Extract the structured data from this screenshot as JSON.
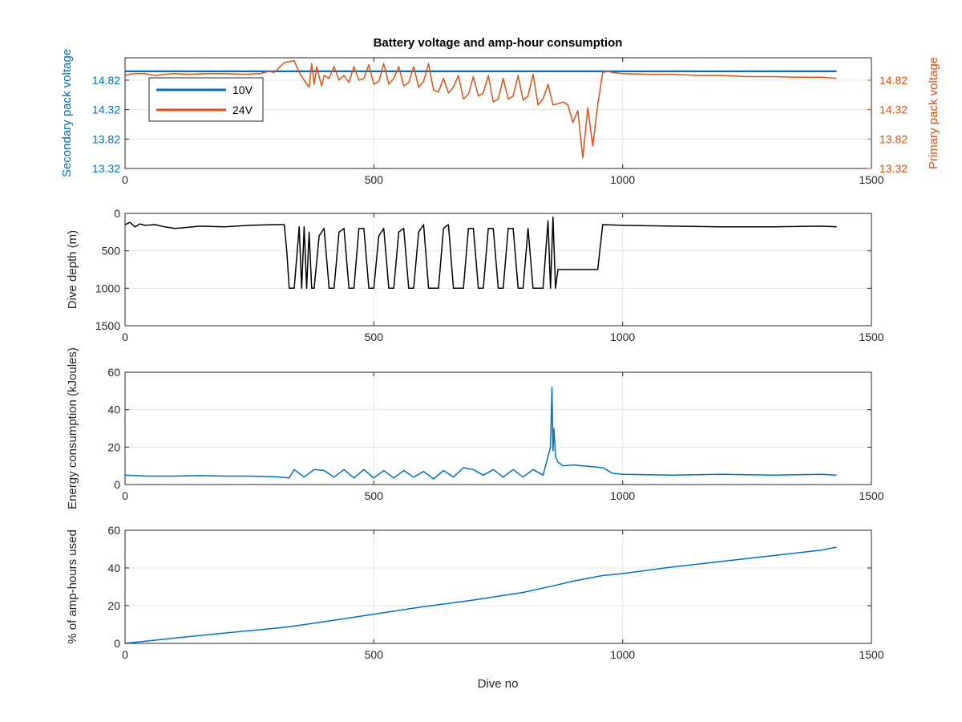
{
  "figure": {
    "title": "Battery voltage and amp-hour consumption",
    "xlabel": "Dive no"
  },
  "chart_data": [
    {
      "type": "line",
      "title": "Battery voltage and amp-hour consumption",
      "xlabel": "",
      "ylabel": "Secondary pack voltage",
      "ylabel_right": "Primary pack voltage",
      "xlim": [
        0,
        1500
      ],
      "ylim": [
        13.32,
        15.2
      ],
      "xticks": [
        "0",
        "500",
        "1000",
        "1500"
      ],
      "yticks": [
        "13.32",
        "13.82",
        "14.32",
        "14.82"
      ],
      "yticks_right": [
        "13.32",
        "13.82",
        "14.32",
        "14.82"
      ],
      "grid": true,
      "legend": "top-left",
      "series": [
        {
          "name": "10V",
          "color": "#0072BD",
          "x": [
            0,
            1430
          ],
          "y": [
            14.97,
            14.97
          ]
        },
        {
          "name": "24V",
          "color": "#D95319",
          "x": [
            0,
            10,
            20,
            40,
            60,
            80,
            100,
            130,
            160,
            200,
            240,
            270,
            290,
            300,
            320,
            340,
            350,
            360,
            370,
            375,
            380,
            385,
            395,
            400,
            410,
            420,
            430,
            440,
            450,
            460,
            470,
            480,
            490,
            500,
            510,
            520,
            530,
            540,
            550,
            560,
            570,
            580,
            590,
            600,
            610,
            620,
            630,
            640,
            650,
            660,
            670,
            680,
            690,
            700,
            710,
            720,
            730,
            740,
            750,
            760,
            770,
            780,
            790,
            800,
            810,
            820,
            830,
            840,
            850,
            860,
            870,
            880,
            890,
            900,
            910,
            920,
            930,
            940,
            950,
            960,
            970,
            980,
            1000,
            1050,
            1100,
            1150,
            1200,
            1250,
            1300,
            1350,
            1400,
            1430
          ],
          "y": [
            14.9,
            14.92,
            14.93,
            14.93,
            14.9,
            14.92,
            14.93,
            14.92,
            14.93,
            14.93,
            14.92,
            14.93,
            14.97,
            14.95,
            15.12,
            15.15,
            14.95,
            14.82,
            14.7,
            15.1,
            14.75,
            15.05,
            14.72,
            14.9,
            14.85,
            15.05,
            14.82,
            14.9,
            14.78,
            15.05,
            14.82,
            14.85,
            15.08,
            14.75,
            14.8,
            15.1,
            14.75,
            14.85,
            15.05,
            14.72,
            14.78,
            15.05,
            14.7,
            14.8,
            15.1,
            14.65,
            14.62,
            14.85,
            14.6,
            14.7,
            14.9,
            14.5,
            14.58,
            14.88,
            14.55,
            14.6,
            14.9,
            14.45,
            14.5,
            14.85,
            14.5,
            14.55,
            14.9,
            14.48,
            14.55,
            14.92,
            14.4,
            14.5,
            14.75,
            14.4,
            14.42,
            14.45,
            14.4,
            14.1,
            14.3,
            13.5,
            14.35,
            13.7,
            14.4,
            14.95,
            14.97,
            14.95,
            14.93,
            14.92,
            14.92,
            14.9,
            14.9,
            14.88,
            14.88,
            14.87,
            14.87,
            14.85
          ]
        }
      ]
    },
    {
      "type": "line",
      "ylabel": "Dive depth (m)",
      "xlim": [
        0,
        1500
      ],
      "ylim": [
        0,
        1500
      ],
      "y_reversed": true,
      "xticks": [
        "0",
        "500",
        "1000",
        "1500"
      ],
      "yticks": [
        "0",
        "500",
        "1000",
        "1500"
      ],
      "grid": true,
      "series": [
        {
          "color": "#000000",
          "x": [
            0,
            10,
            20,
            30,
            40,
            60,
            80,
            100,
            120,
            150,
            200,
            250,
            300,
            320,
            325,
            330,
            340,
            350,
            355,
            360,
            365,
            370,
            375,
            380,
            390,
            400,
            410,
            420,
            430,
            440,
            450,
            460,
            470,
            480,
            490,
            500,
            510,
            520,
            530,
            540,
            550,
            560,
            570,
            580,
            590,
            600,
            610,
            620,
            630,
            640,
            650,
            660,
            670,
            680,
            690,
            700,
            710,
            720,
            730,
            740,
            750,
            760,
            770,
            780,
            790,
            800,
            810,
            820,
            830,
            840,
            850,
            855,
            860,
            865,
            870,
            880,
            900,
            920,
            940,
            950,
            960,
            1000,
            1100,
            1200,
            1300,
            1400,
            1430
          ],
          "y": [
            150,
            120,
            180,
            140,
            160,
            150,
            180,
            200,
            190,
            170,
            180,
            160,
            150,
            150,
            500,
            1000,
            1000,
            180,
            1000,
            180,
            1000,
            250,
            1000,
            1000,
            300,
            200,
            1000,
            1000,
            250,
            200,
            1000,
            1000,
            200,
            200,
            1000,
            1000,
            300,
            200,
            1000,
            1000,
            250,
            200,
            1000,
            1000,
            250,
            150,
            1000,
            1000,
            1000,
            200,
            150,
            1000,
            1000,
            1000,
            200,
            200,
            1000,
            1000,
            200,
            200,
            1000,
            1000,
            200,
            200,
            1000,
            1000,
            200,
            1000,
            1000,
            1000,
            100,
            1000,
            50,
            1000,
            750,
            750,
            750,
            750,
            750,
            750,
            150,
            160,
            170,
            180,
            180,
            170,
            180
          ]
        }
      ]
    },
    {
      "type": "line",
      "ylabel": "Energy consumption (kJoules)",
      "xlim": [
        0,
        1500
      ],
      "ylim": [
        0,
        60
      ],
      "xticks": [
        "0",
        "500",
        "1000",
        "1500"
      ],
      "yticks": [
        "0",
        "20",
        "40",
        "60"
      ],
      "grid": true,
      "series": [
        {
          "color": "#0072BD",
          "x": [
            0,
            50,
            100,
            150,
            200,
            250,
            300,
            330,
            340,
            360,
            380,
            400,
            420,
            440,
            460,
            480,
            500,
            520,
            540,
            560,
            580,
            600,
            620,
            640,
            660,
            680,
            700,
            720,
            740,
            760,
            780,
            800,
            820,
            840,
            850,
            855,
            858,
            860,
            862,
            865,
            870,
            880,
            900,
            920,
            940,
            960,
            980,
            1000,
            1100,
            1200,
            1300,
            1400,
            1430
          ],
          "y": [
            5,
            4.5,
            4.5,
            4.8,
            4.5,
            4.5,
            4.2,
            3.5,
            8,
            4,
            8,
            7.5,
            4,
            8,
            3.5,
            8,
            3.5,
            7.5,
            3.5,
            7.5,
            4,
            7,
            3,
            7.5,
            4,
            9,
            8,
            5,
            8,
            4,
            8,
            4,
            8,
            5,
            15,
            20,
            52,
            18,
            30,
            15,
            12,
            10,
            10.5,
            10,
            9.5,
            9,
            6,
            5.5,
            5,
            5.5,
            5,
            5.5,
            5
          ]
        }
      ]
    },
    {
      "type": "line",
      "xlabel": "Dive no",
      "ylabel": "% of amp-hours used",
      "xlim": [
        0,
        1500
      ],
      "ylim": [
        0,
        60
      ],
      "xticks": [
        "0",
        "500",
        "1000",
        "1500"
      ],
      "yticks": [
        "0",
        "20",
        "40",
        "60"
      ],
      "grid": true,
      "series": [
        {
          "color": "#0072BD",
          "x": [
            0,
            100,
            200,
            300,
            330,
            400,
            500,
            600,
            700,
            800,
            860,
            900,
            960,
            1000,
            1100,
            1200,
            1300,
            1400,
            1430
          ],
          "y": [
            0,
            2.8,
            5.5,
            8,
            8.8,
            11.5,
            15.5,
            19.5,
            23,
            27,
            30.5,
            33,
            36,
            37,
            40.5,
            43.5,
            46.5,
            49.5,
            51
          ]
        }
      ]
    }
  ]
}
